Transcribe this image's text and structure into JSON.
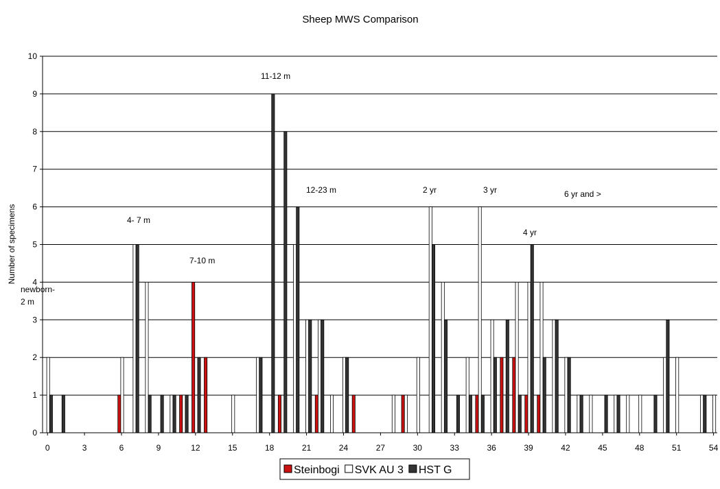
{
  "chart_data": {
    "type": "bar",
    "title": "Sheep MWS Comparison",
    "y_label": "Number of specimens",
    "x": [
      0,
      1,
      2,
      3,
      4,
      5,
      6,
      7,
      8,
      9,
      10,
      11,
      12,
      13,
      14,
      15,
      16,
      17,
      18,
      19,
      20,
      21,
      22,
      23,
      24,
      25,
      26,
      27,
      28,
      29,
      30,
      31,
      32,
      33,
      34,
      35,
      36,
      37,
      38,
      39,
      40,
      41,
      42,
      43,
      44,
      45,
      46,
      47,
      48,
      49,
      50,
      51,
      52,
      53,
      54
    ],
    "series": [
      {
        "name": "Steinbogi",
        "color": "#cc1111",
        "values": [
          0,
          0,
          0,
          0,
          0,
          0,
          1,
          0,
          0,
          0,
          0,
          1,
          4,
          2,
          0,
          0,
          0,
          0,
          0,
          1,
          0,
          0,
          1,
          0,
          0,
          1,
          0,
          0,
          0,
          1,
          0,
          0,
          0,
          0,
          0,
          1,
          0,
          2,
          2,
          1,
          1,
          0,
          0,
          0,
          0,
          0,
          0,
          0,
          0,
          0,
          0,
          0,
          0,
          0,
          0
        ]
      },
      {
        "name": "SVK AU 3",
        "color": "#ffffff",
        "values": [
          2,
          0,
          0,
          0,
          0,
          0,
          2,
          5,
          4,
          0,
          1,
          1,
          0,
          0,
          0,
          1,
          0,
          2,
          0,
          0,
          5,
          3,
          3,
          1,
          2,
          0,
          0,
          0,
          1,
          1,
          2,
          6,
          4,
          0,
          2,
          6,
          3,
          1,
          4,
          4,
          4,
          3,
          2,
          1,
          1,
          0,
          1,
          1,
          1,
          0,
          2,
          2,
          0,
          1,
          1
        ]
      },
      {
        "name": "HST G",
        "color": "#333333",
        "values": [
          1,
          1,
          0,
          0,
          0,
          0,
          0,
          5,
          1,
          1,
          1,
          1,
          2,
          0,
          0,
          0,
          0,
          2,
          9,
          8,
          6,
          3,
          3,
          0,
          2,
          0,
          0,
          0,
          0,
          0,
          0,
          5,
          3,
          1,
          1,
          1,
          2,
          3,
          1,
          5,
          2,
          3,
          2,
          1,
          0,
          1,
          1,
          0,
          0,
          1,
          3,
          0,
          0,
          1,
          0
        ]
      }
    ],
    "xlim": [
      -0.4,
      54.3
    ],
    "xticks": [
      0,
      3,
      6,
      9,
      12,
      15,
      18,
      21,
      24,
      27,
      30,
      33,
      36,
      39,
      42,
      45,
      48,
      51,
      54
    ],
    "ylim": [
      0,
      10
    ],
    "yticks": [
      0,
      1,
      2,
      3,
      4,
      5,
      6,
      7,
      8,
      9,
      10
    ],
    "grid": true,
    "legend": "bottom",
    "annotations": [
      [
        "newborn-",
        "2 m"
      ],
      [
        "4- 7 m"
      ],
      [
        "7-10 m"
      ],
      [
        "11-12 m"
      ],
      [
        "12-23 m"
      ],
      [
        "2 yr"
      ],
      [
        "3 yr"
      ],
      [
        "4 yr"
      ],
      [
        "6 yr and >"
      ]
    ]
  }
}
